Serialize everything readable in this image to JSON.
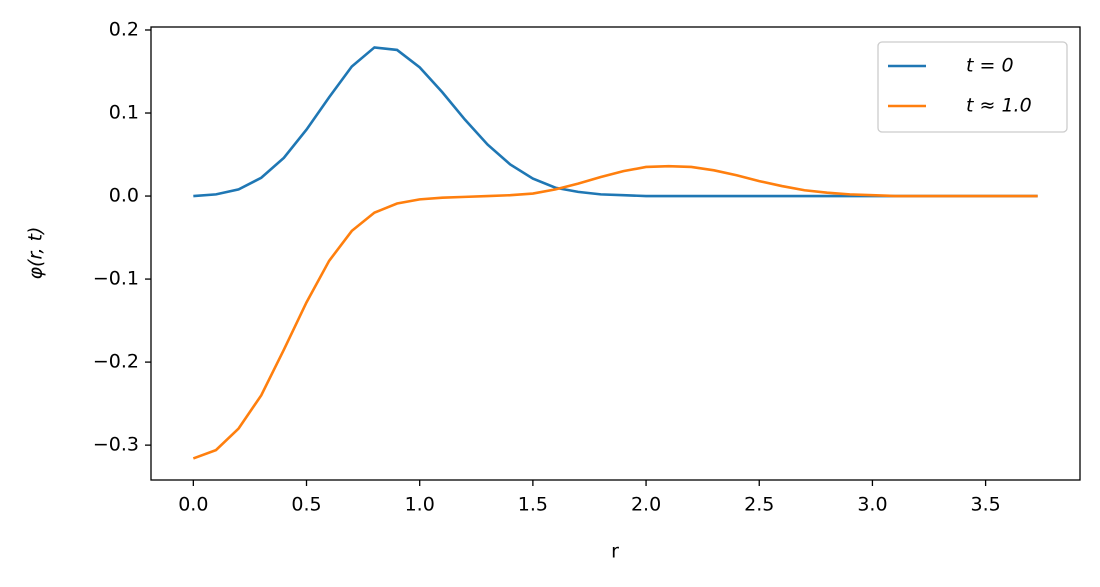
{
  "chart_data": {
    "type": "line",
    "x_label": "r",
    "y_label": "φ(r, t)",
    "x": [
      0,
      0.1,
      0.2,
      0.3,
      0.4,
      0.5,
      0.6,
      0.7,
      0.8,
      0.9,
      1.0,
      1.1,
      1.2,
      1.3,
      1.4,
      1.5,
      1.6,
      1.7,
      1.8,
      1.9,
      2.0,
      2.1,
      2.2,
      2.3,
      2.4,
      2.5,
      2.6,
      2.7,
      2.8,
      2.9,
      3.0,
      3.1,
      3.2,
      3.3,
      3.4,
      3.5,
      3.6,
      3.7,
      3.73
    ],
    "series": [
      {
        "name": "t = 0",
        "color": "#1f77b4",
        "values": [
          0.0,
          0.002,
          0.008,
          0.022,
          0.046,
          0.08,
          0.119,
          0.156,
          0.179,
          0.176,
          0.155,
          0.125,
          0.092,
          0.062,
          0.038,
          0.021,
          0.01,
          0.005,
          0.002,
          0.001,
          0,
          0,
          0,
          0,
          0,
          0,
          0,
          0,
          0,
          0,
          0,
          0,
          0,
          0,
          0,
          0,
          0,
          0,
          0
        ]
      },
      {
        "name": "t ≈ 1.0",
        "color": "#ff7f0e",
        "values": [
          -0.316,
          -0.306,
          -0.28,
          -0.24,
          -0.185,
          -0.128,
          -0.078,
          -0.042,
          -0.02,
          -0.009,
          -0.004,
          -0.002,
          -0.001,
          0.0,
          0.001,
          0.003,
          0.008,
          0.015,
          0.023,
          0.03,
          0.035,
          0.036,
          0.035,
          0.031,
          0.025,
          0.018,
          0.012,
          0.007,
          0.004,
          0.002,
          0.001,
          0,
          0,
          0,
          0,
          0,
          0,
          0,
          0
        ]
      }
    ],
    "xlim": [
      -0.187,
      3.917
    ],
    "ylim": [
      -0.342,
      0.2036
    ],
    "xticks": [
      {
        "value": 0,
        "label": "0.0"
      },
      {
        "value": 0.5,
        "label": "0.5"
      },
      {
        "value": 1.0,
        "label": "1.0"
      },
      {
        "value": 1.5,
        "label": "1.5"
      },
      {
        "value": 2.0,
        "label": "2.0"
      },
      {
        "value": 2.5,
        "label": "2.5"
      },
      {
        "value": 3.0,
        "label": "3.0"
      },
      {
        "value": 3.5,
        "label": "3.5"
      }
    ],
    "yticks": [
      {
        "value": -0.3,
        "label": "−0.3"
      },
      {
        "value": -0.2,
        "label": "−0.2"
      },
      {
        "value": -0.1,
        "label": "−0.1"
      },
      {
        "value": 0,
        "label": "0.0"
      },
      {
        "value": 0.1,
        "label": "0.1"
      },
      {
        "value": 0.2,
        "label": "0.2"
      }
    ],
    "grid": false,
    "legend": "upper right"
  }
}
